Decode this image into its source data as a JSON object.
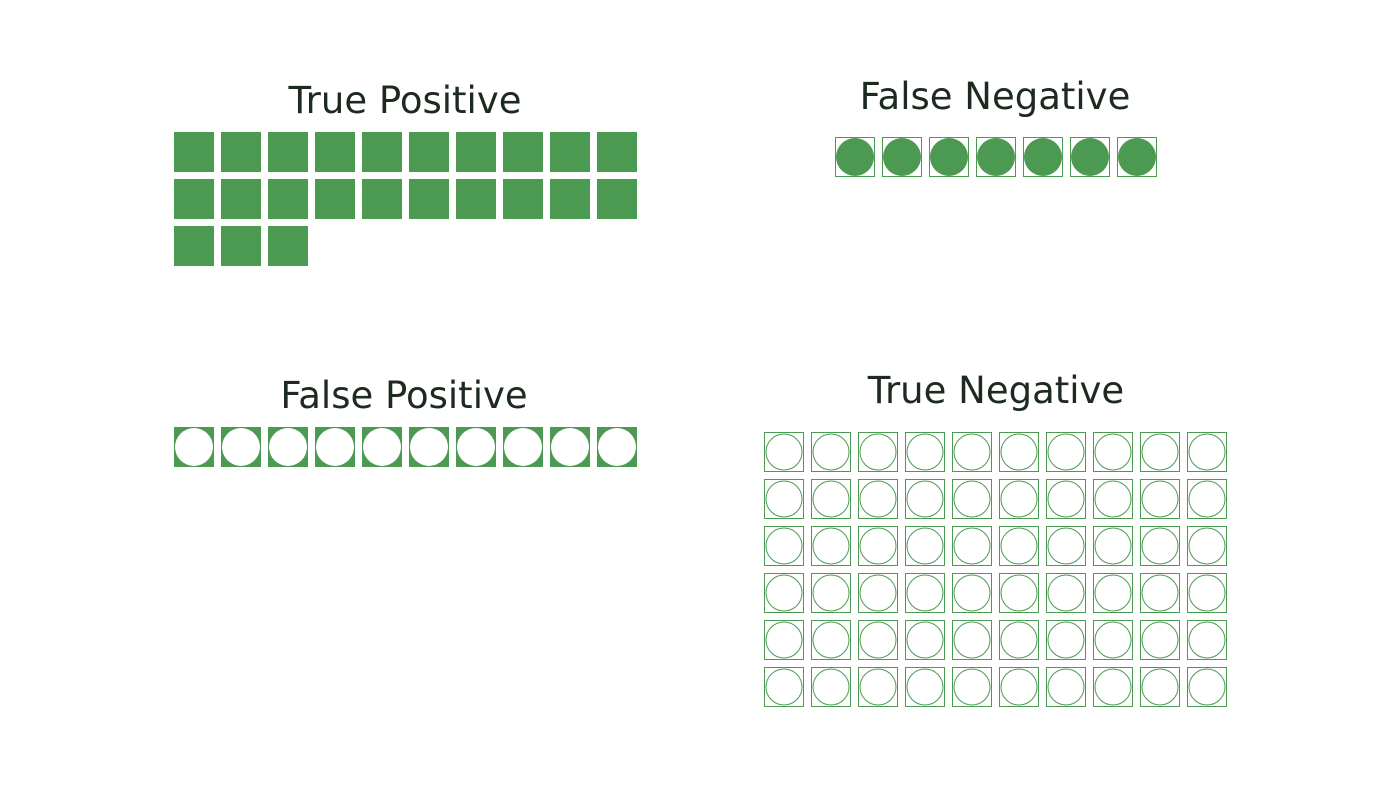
{
  "quadrants": {
    "true_positive": {
      "title": "True Positive",
      "count": 23,
      "cell_style": "filled",
      "dot_style": "none"
    },
    "false_negative": {
      "title": "False Negative",
      "count": 7,
      "cell_style": "outlined",
      "dot_style": "green"
    },
    "false_positive": {
      "title": "False Positive",
      "count": 10,
      "cell_style": "filled",
      "dot_style": "white"
    },
    "true_negative": {
      "title": "True Negative",
      "count": 60,
      "cell_style": "outlined",
      "dot_style": "ring"
    }
  },
  "colors": {
    "accent_green": "#4c9a52",
    "title_text": "#1d2a20",
    "background": "#ffffff"
  }
}
